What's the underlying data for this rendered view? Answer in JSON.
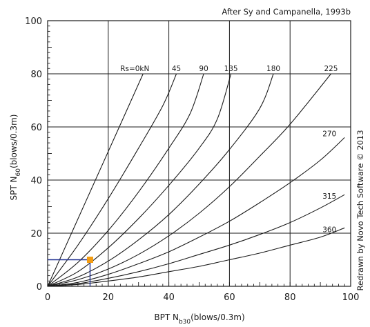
{
  "chart_data": {
    "type": "line",
    "source_note": "After Sy and Campanella, 1993b",
    "credit": "Redrawn by Novo Tech Software © 2013",
    "ylabel": {
      "main": "SPT N",
      "sub": "60",
      "unit": "(blows/0.3m)"
    },
    "xlabel": {
      "main": "BPT N",
      "sub": "b30",
      "unit": "(blows/0.3m)"
    },
    "xlim": [
      0,
      100
    ],
    "ylim": [
      0,
      100
    ],
    "x_ticks": [
      "0",
      "20",
      "40",
      "60",
      "80",
      "100"
    ],
    "y_ticks": [
      "0",
      "20",
      "40",
      "60",
      "80",
      "100"
    ],
    "grid": true,
    "series": [
      {
        "label": "Rs=0kN",
        "x": [
          0,
          8,
          16,
          24,
          31.5
        ],
        "y": [
          0,
          20.3,
          40.6,
          60.9,
          80
        ]
      },
      {
        "label": "45",
        "x": [
          0,
          10,
          20,
          30,
          38,
          42.5
        ],
        "y": [
          0,
          15.5,
          33,
          52,
          68,
          80
        ]
      },
      {
        "label": "90",
        "x": [
          0,
          10,
          20,
          30,
          40,
          47,
          51.5
        ],
        "y": [
          0,
          9,
          21,
          35.5,
          52,
          65,
          80
        ]
      },
      {
        "label": "135",
        "x": [
          0,
          10,
          20,
          30,
          40,
          50,
          56,
          60.5
        ],
        "y": [
          0,
          5.5,
          14.5,
          25.5,
          38,
          52,
          63,
          80
        ]
      },
      {
        "label": "180",
        "x": [
          0,
          10,
          20,
          30,
          40,
          50,
          60,
          70,
          74.5
        ],
        "y": [
          0,
          3.5,
          9.5,
          17.5,
          27,
          38.5,
          51.5,
          67,
          80
        ]
      },
      {
        "label": "225",
        "x": [
          0,
          10,
          20,
          30,
          40,
          50,
          60,
          70,
          80,
          93.5
        ],
        "y": [
          0,
          2.5,
          6.5,
          12,
          19,
          27.5,
          37.5,
          49,
          61,
          80
        ]
      },
      {
        "label": "270",
        "x": [
          0,
          10,
          20,
          30,
          40,
          50,
          60,
          70,
          80,
          90,
          98
        ],
        "y": [
          0,
          1.5,
          4.5,
          8.5,
          13,
          18.5,
          24.5,
          31.5,
          39,
          47.5,
          56
        ]
      },
      {
        "label": "315",
        "x": [
          0,
          10,
          20,
          30,
          40,
          50,
          60,
          70,
          80,
          90,
          98
        ],
        "y": [
          0,
          1,
          3,
          5.5,
          8.5,
          12,
          15.5,
          19.5,
          24,
          29.5,
          34.5
        ]
      },
      {
        "label": "360",
        "x": [
          0,
          10,
          20,
          30,
          40,
          50,
          60,
          70,
          80,
          90,
          98
        ],
        "y": [
          0,
          0.7,
          2,
          3.5,
          5.5,
          7.5,
          10,
          12.5,
          15.5,
          18.5,
          22
        ]
      }
    ],
    "curve_label_y": 80,
    "example_point": {
      "x": 14,
      "y": 10,
      "color": "#f39c12"
    },
    "guide_color": "#1f2f8f",
    "line_color": "#1a1a1a",
    "grid_color": "#1a1a1a"
  }
}
